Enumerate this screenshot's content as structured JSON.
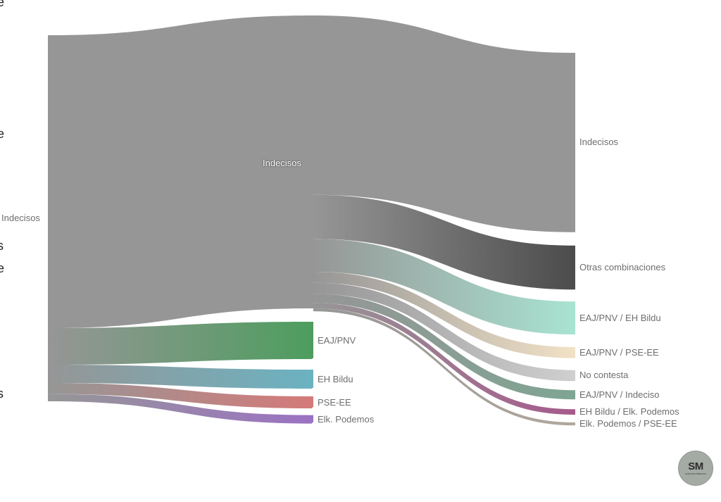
{
  "page": {
    "background": "#ffffff",
    "text_color": "#6e6e6e"
  },
  "edge_fragments": [
    "e",
    "e",
    "s",
    "e",
    "s"
  ],
  "logo": {
    "text": "SM",
    "subtext": "ANÁLISIS PÚBLICOS",
    "color": "#a3aba4"
  },
  "chart_data": {
    "type": "sankey",
    "title": "",
    "stages": 3,
    "nodes": [
      {
        "id": "s0_indecisos",
        "label": "Indecisos",
        "stage": 0,
        "value": 100,
        "color": "#969696"
      },
      {
        "id": "s1_indecisos",
        "label": "Indecisos",
        "stage": 1,
        "value": 80,
        "color": "#969696"
      },
      {
        "id": "s1_eaj",
        "label": "EAJ/PNV",
        "stage": 1,
        "value": 10,
        "color": "#4e9d5f"
      },
      {
        "id": "s1_bildu",
        "label": "EH Bildu",
        "stage": 1,
        "value": 5,
        "color": "#6bb2c1"
      },
      {
        "id": "s1_psee",
        "label": "PSE-EE",
        "stage": 1,
        "value": 3,
        "color": "#d47a79"
      },
      {
        "id": "s1_podemos",
        "label": "Elk. Podemos",
        "stage": 1,
        "value": 2,
        "color": "#9b72c3"
      },
      {
        "id": "s2_indecisos",
        "label": "Indecisos",
        "stage": 2,
        "value": 49,
        "color": "#969696"
      },
      {
        "id": "s2_otras",
        "label": "Otras combinaciones",
        "stage": 2,
        "value": 12,
        "color": "#4c4c4c"
      },
      {
        "id": "s2_eaj_bildu",
        "label": "EAJ/PNV / EH Bildu",
        "stage": 2,
        "value": 9,
        "color": "#a9e3d2"
      },
      {
        "id": "s2_eaj_psee",
        "label": "EAJ/PNV / PSE-EE",
        "stage": 2,
        "value": 3,
        "color": "#f1e1c6"
      },
      {
        "id": "s2_nc",
        "label": "No contesta",
        "stage": 2,
        "value": 3,
        "color": "#cfcfcf"
      },
      {
        "id": "s2_eaj_ind",
        "label": "EAJ/PNV / Indeciso",
        "stage": 2,
        "value": 2.5,
        "color": "#7fa594"
      },
      {
        "id": "s2_bildu_pod",
        "label": "EH Bildu / Elk. Podemos",
        "stage": 2,
        "value": 1.5,
        "color": "#a65a8c"
      },
      {
        "id": "s2_pod_psee",
        "label": "Elk. Podemos / PSE-EE",
        "stage": 2,
        "value": 0.8,
        "color": "#b0a79c"
      }
    ],
    "links": [
      {
        "source": "s0_indecisos",
        "target": "s1_indecisos",
        "value": 80
      },
      {
        "source": "s0_indecisos",
        "target": "s1_eaj",
        "value": 10
      },
      {
        "source": "s0_indecisos",
        "target": "s1_bildu",
        "value": 5
      },
      {
        "source": "s0_indecisos",
        "target": "s1_psee",
        "value": 3
      },
      {
        "source": "s0_indecisos",
        "target": "s1_podemos",
        "value": 2
      },
      {
        "source": "s1_indecisos",
        "target": "s2_indecisos",
        "value": 49
      },
      {
        "source": "s1_indecisos",
        "target": "s2_otras",
        "value": 12
      },
      {
        "source": "s1_indecisos",
        "target": "s2_eaj_bildu",
        "value": 9
      },
      {
        "source": "s1_indecisos",
        "target": "s2_eaj_psee",
        "value": 3
      },
      {
        "source": "s1_indecisos",
        "target": "s2_nc",
        "value": 3
      },
      {
        "source": "s1_indecisos",
        "target": "s2_eaj_ind",
        "value": 2.5
      },
      {
        "source": "s1_indecisos",
        "target": "s2_bildu_pod",
        "value": 1.5
      },
      {
        "source": "s1_indecisos",
        "target": "s2_pod_psee",
        "value": 0.8
      }
    ]
  }
}
